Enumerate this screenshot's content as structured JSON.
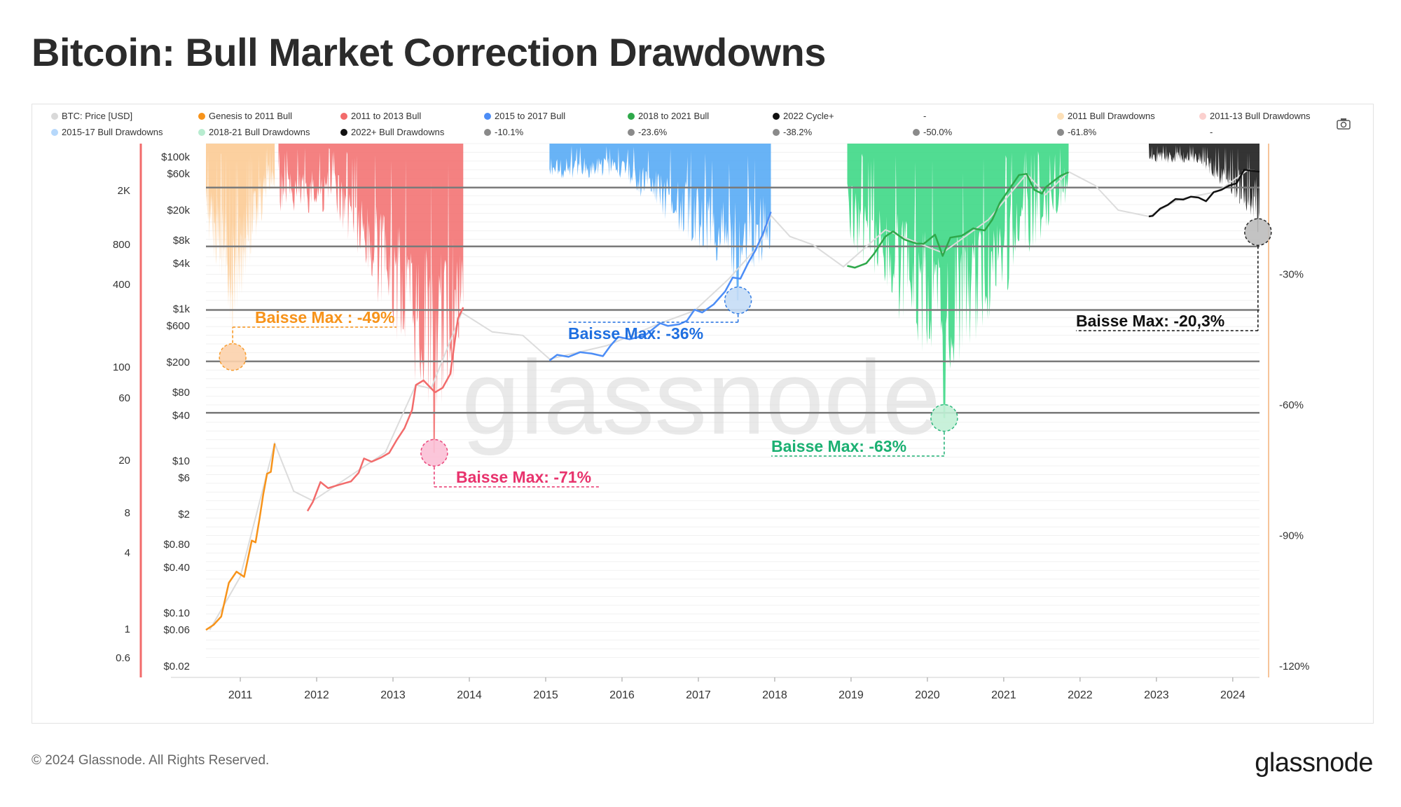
{
  "page": {
    "title": "Bitcoin: Bull Market Correction Drawdowns",
    "footer_copyright": "© 2024 Glassnode. All Rights Reserved.",
    "footer_logo": "glassnode",
    "watermark": "glassnode",
    "camera_icon": "camera-icon"
  },
  "chart_data": {
    "type": "line",
    "title": "Bitcoin: Bull Market Correction Drawdowns",
    "x_ticks": [
      "2011",
      "2012",
      "2013",
      "2014",
      "2015",
      "2016",
      "2017",
      "2018",
      "2019",
      "2020",
      "2021",
      "2022",
      "2023",
      "2024"
    ],
    "x_range": [
      2010.55,
      2024.35
    ],
    "legend_placement": "top",
    "legend": [
      {
        "label": "BTC: Price [USD]",
        "color": "#d9d9d9"
      },
      {
        "label": "Genesis to 2011 Bull",
        "color": "#f7931a"
      },
      {
        "label": "2011 to 2013 Bull",
        "color": "#f26b6b"
      },
      {
        "label": "2015 to 2017 Bull",
        "color": "#4c8df6"
      },
      {
        "label": "2018 to 2021 Bull",
        "color": "#2ea84a"
      },
      {
        "label": "2022 Cycle+",
        "color": "#111111"
      },
      {
        "label": "-",
        "color": ""
      },
      {
        "label": "2011 Bull Drawdowns",
        "color": "#fde0b8"
      },
      {
        "label": "2011-13 Bull Drawdowns",
        "color": "#fbd0ce"
      },
      {
        "label": "2015-17 Bull Drawdowns",
        "color": "#b6d8fb"
      },
      {
        "label": "2018-21 Bull Drawdowns",
        "color": "#b8ecd0"
      },
      {
        "label": "2022+ Bull Drawdowns",
        "color": "#111111"
      },
      {
        "label": "-10.1%",
        "color": "#8a8a8a"
      },
      {
        "label": "-23.6%",
        "color": "#8a8a8a"
      },
      {
        "label": "-38.2%",
        "color": "#8a8a8a"
      },
      {
        "label": "-50.0%",
        "color": "#8a8a8a"
      },
      {
        "label": "-61.8%",
        "color": "#8a8a8a"
      },
      {
        "label": "-",
        "color": ""
      }
    ],
    "left_axis_ticks": [
      "2K",
      "800",
      "400",
      "100",
      "60",
      "20",
      "8",
      "4",
      "1",
      "0.6"
    ],
    "price_axis_ticks": [
      "$100k",
      "$60k",
      "$20k",
      "$8k",
      "$4k",
      "$1k",
      "$600",
      "$200",
      "$80",
      "$40",
      "$10",
      "$6",
      "$2",
      "$0.80",
      "$0.40",
      "$0.10",
      "$0.06",
      "$0.02"
    ],
    "right_axis_ticks": [
      "-30%",
      "-60%",
      "-90%",
      "-120%"
    ],
    "right_axis_range": [
      -120,
      0
    ],
    "fib_levels": [
      -10.1,
      -23.6,
      -38.2,
      -50.0,
      -61.8
    ],
    "series": [
      {
        "name": "Genesis to 2011 Bull",
        "color": "#f7931a",
        "x": [
          2010.55,
          2010.65,
          2010.75,
          2010.85,
          2010.95,
          2011.05,
          2011.15,
          2011.2,
          2011.25,
          2011.3,
          2011.35,
          2011.4,
          2011.45
        ],
        "y": [
          0.06,
          0.07,
          0.09,
          0.25,
          0.35,
          0.3,
          0.9,
          0.85,
          1.7,
          3.6,
          6.8,
          7.2,
          17
        ]
      },
      {
        "name": "2011 to 2013 Bull",
        "color": "#f26b6b",
        "x": [
          2011.88,
          2011.95,
          2012.05,
          2012.15,
          2012.3,
          2012.45,
          2012.55,
          2012.62,
          2012.72,
          2012.85,
          2012.95,
          2013.05,
          2013.15,
          2013.25,
          2013.3,
          2013.4,
          2013.55,
          2013.65,
          2013.75,
          2013.85,
          2013.92
        ],
        "y": [
          2.2,
          2.9,
          5.3,
          4.4,
          4.9,
          5.4,
          7.0,
          10.8,
          9.8,
          11.2,
          12.8,
          19,
          27,
          47,
          100,
          115,
          80,
          92,
          140,
          750,
          1050
        ]
      },
      {
        "name": "2015 to 2017 Bull",
        "color": "#4c8df6",
        "x": [
          2015.05,
          2015.15,
          2015.3,
          2015.45,
          2015.6,
          2015.75,
          2015.85,
          2015.95,
          2016.1,
          2016.3,
          2016.5,
          2016.6,
          2016.75,
          2016.85,
          2016.95,
          2017.05,
          2017.2,
          2017.35,
          2017.45,
          2017.55,
          2017.65,
          2017.75,
          2017.85,
          2017.95
        ],
        "y": [
          210,
          250,
          235,
          270,
          260,
          240,
          330,
          430,
          400,
          450,
          650,
          600,
          630,
          700,
          980,
          900,
          1150,
          1700,
          2600,
          2500,
          4000,
          6000,
          10000,
          19000
        ]
      },
      {
        "name": "2018 to 2021 Bull",
        "color": "#2ea84a",
        "x": [
          2018.95,
          2019.05,
          2019.2,
          2019.3,
          2019.45,
          2019.55,
          2019.7,
          2019.85,
          2019.95,
          2020.1,
          2020.2,
          2020.3,
          2020.45,
          2020.6,
          2020.75,
          2020.85,
          2020.95,
          2021.05,
          2021.2,
          2021.3,
          2021.4,
          2021.5,
          2021.55,
          2021.65,
          2021.75,
          2021.85
        ],
        "y": [
          3700,
          3500,
          4000,
          5300,
          9000,
          10500,
          8200,
          7300,
          7200,
          9500,
          5000,
          8700,
          9200,
          11500,
          10800,
          15000,
          25000,
          35000,
          58000,
          60000,
          37000,
          33000,
          40000,
          48000,
          57000,
          63000
        ]
      },
      {
        "name": "2022 Cycle+",
        "color": "#111111",
        "x": [
          2022.9,
          2022.95,
          2023.05,
          2023.15,
          2023.25,
          2023.35,
          2023.45,
          2023.55,
          2023.65,
          2023.75,
          2023.85,
          2023.95,
          2024.05,
          2024.15,
          2024.25,
          2024.35
        ],
        "y": [
          16500,
          16800,
          21000,
          23500,
          28000,
          27500,
          30000,
          29300,
          26200,
          34500,
          37000,
          42000,
          45000,
          68000,
          66000,
          64000
        ]
      }
    ],
    "drawdown_peaks": [
      {
        "name": "2011 Bull Drawdowns",
        "x": 2010.9,
        "value": -49
      },
      {
        "name": "2011-13 Bull Drawdowns",
        "x": 2013.54,
        "value": -71
      },
      {
        "name": "2015-17 Bull Drawdowns",
        "x": 2017.52,
        "value": -36
      },
      {
        "name": "2018-21 Bull Drawdowns",
        "x": 2020.22,
        "value": -63
      },
      {
        "name": "2022+ Bull Drawdowns",
        "x": 2024.33,
        "value": -20.3
      }
    ],
    "annotations": [
      {
        "text": "Baisse Max : -49%",
        "color": "#f7931a"
      },
      {
        "text": "Baisse Max: -71%",
        "color": "#e8336d"
      },
      {
        "text": "Baisse Max: -36%",
        "color": "#1f6fe0"
      },
      {
        "text": "Baisse Max: -63%",
        "color": "#1bb072"
      },
      {
        "text": "Baisse Max: -20,3%",
        "color": "#111111"
      }
    ]
  }
}
